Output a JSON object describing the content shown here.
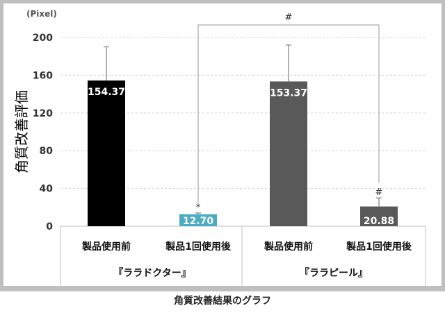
{
  "caption": "角質改善結果のグラフ",
  "chart_data": {
    "type": "bar",
    "unit_label": "(Pixel)",
    "ylabel": "角質改善評価",
    "ylim": [
      0,
      200
    ],
    "yticks": [
      0,
      40,
      80,
      120,
      160,
      200
    ],
    "grid": true,
    "categories": [
      "製品使用前",
      "製品1回使用後",
      "製品使用前",
      "製品1回使用後"
    ],
    "groups": [
      "『ララドクター』",
      "『ララピール』"
    ],
    "values": [
      154.37,
      12.7,
      153.37,
      20.88
    ],
    "value_labels": [
      "154.37",
      "12.70",
      "153.37",
      "20.88"
    ],
    "error_upper": [
      190,
      14,
      192,
      30
    ],
    "bar_colors": [
      "#000000",
      "#4bacc6",
      "#595959",
      "#595959"
    ],
    "markers": [
      "",
      "*",
      "",
      "#"
    ],
    "bracket_label": "#",
    "bracket_between": [
      1,
      3
    ]
  }
}
